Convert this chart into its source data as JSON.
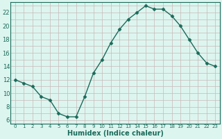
{
  "x": [
    0,
    1,
    2,
    3,
    4,
    5,
    6,
    7,
    8,
    9,
    10,
    11,
    12,
    13,
    14,
    15,
    16,
    17,
    18,
    19,
    20,
    21,
    22,
    23
  ],
  "y": [
    12,
    11.5,
    11,
    9.5,
    9,
    7,
    6.5,
    6.5,
    9.5,
    13,
    15,
    17.5,
    19.5,
    21,
    22,
    23,
    22.5,
    22.5,
    21.5,
    20,
    18,
    16,
    14.5,
    14
  ],
  "line_color": "#1a6b5a",
  "marker": "D",
  "marker_size": 2.5,
  "bg_color": "#ddf5ef",
  "grid_color_major": "#c8b8b8",
  "grid_color_minor": "#c8b8b8",
  "xlabel": "Humidex (Indice chaleur)",
  "xlim": [
    -0.5,
    23.5
  ],
  "ylim": [
    5.5,
    23.5
  ],
  "yticks": [
    6,
    8,
    10,
    12,
    14,
    16,
    18,
    20,
    22
  ],
  "xticks": [
    0,
    1,
    2,
    3,
    4,
    5,
    6,
    7,
    8,
    9,
    10,
    11,
    12,
    13,
    14,
    15,
    16,
    17,
    18,
    19,
    20,
    21,
    22,
    23
  ]
}
